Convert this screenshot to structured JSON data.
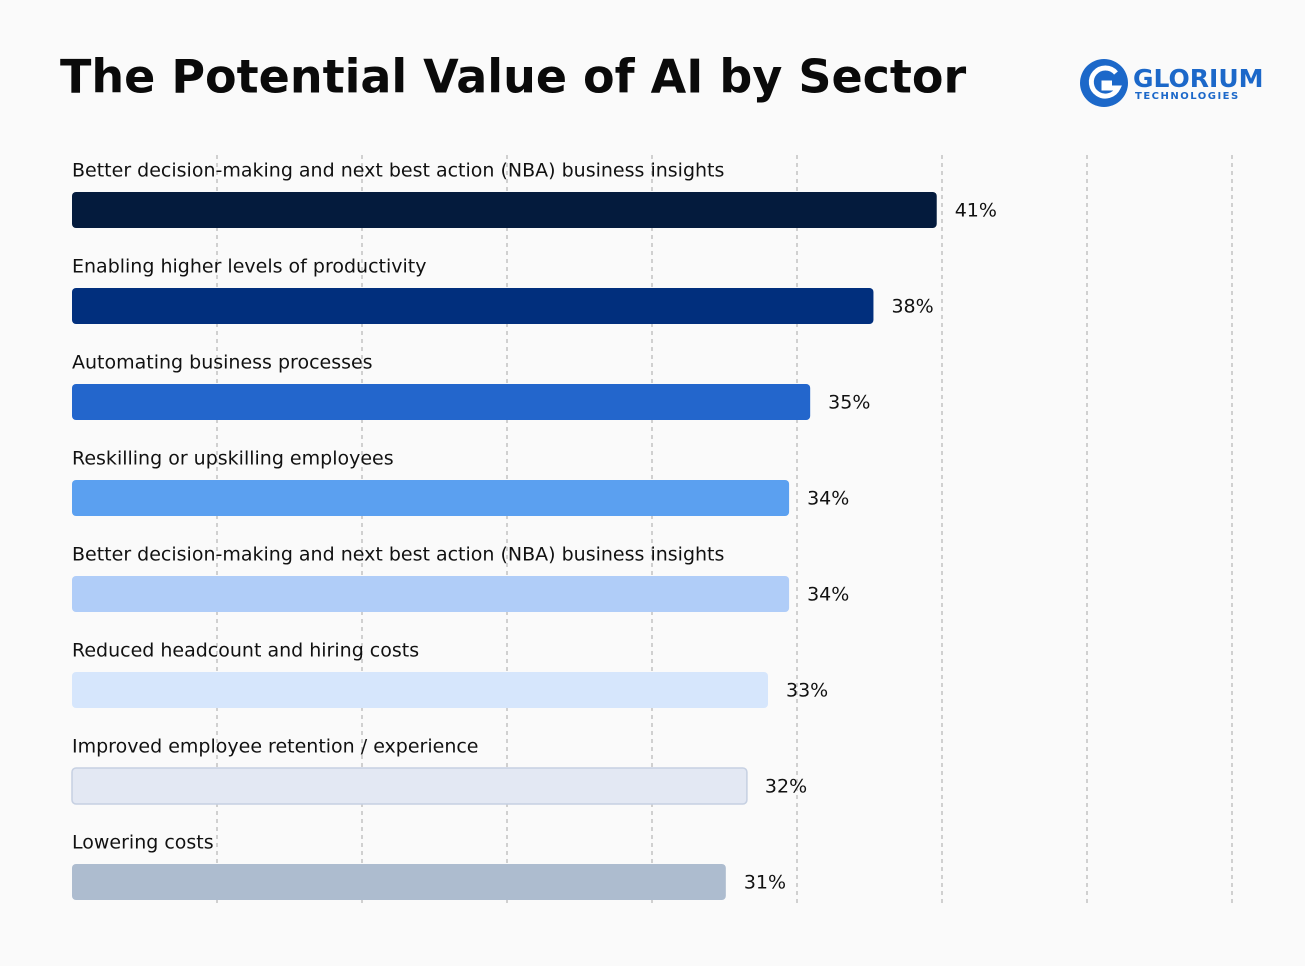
{
  "logo": {
    "name": "GLORIUM",
    "tagline": "TECHNOLOGIES"
  },
  "chart_data": {
    "type": "bar",
    "orientation": "horizontal",
    "title": "The Potential Value of AI by Sector",
    "categories": [
      "Better decision-making and next best action (NBA) business insights",
      "Enabling higher levels of productivity",
      "Automating business processes",
      "Reskilling or upskilling employees",
      "Better decision-making and next best action (NBA) business insights",
      "Reduced headcount and hiring costs",
      "Improved employee retention / experience",
      "Lowering costs"
    ],
    "values": [
      41,
      38,
      35,
      34,
      34,
      33,
      32,
      31
    ],
    "value_labels": [
      "41%",
      "38%",
      "35%",
      "34%",
      "34%",
      "33%",
      "32%",
      "31%"
    ],
    "colors": [
      "#041b3d",
      "#012f7d",
      "#2366cc",
      "#5ba0f0",
      "#b0cdf8",
      "#d6e6fc",
      "#e3e8f3",
      "#adbccf"
    ],
    "xlim": [
      0,
      55
    ]
  }
}
